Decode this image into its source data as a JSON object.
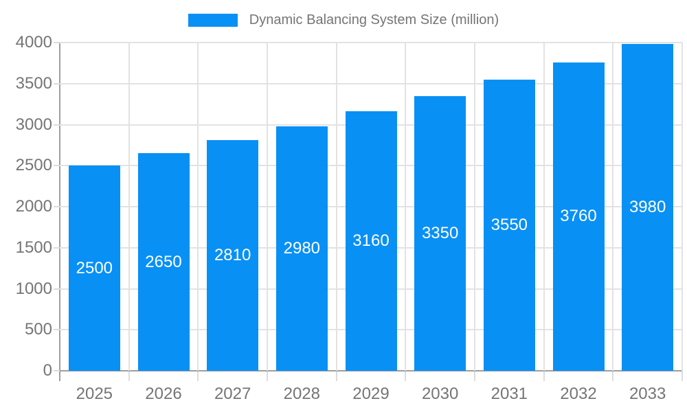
{
  "chart_data": {
    "type": "bar",
    "title": "Dynamic Balancing System Size (million)",
    "legend": {
      "position": "top",
      "label": "Dynamic Balancing System Size (million)"
    },
    "categories": [
      "2025",
      "2026",
      "2027",
      "2028",
      "2029",
      "2030",
      "2031",
      "2032",
      "2033"
    ],
    "values": [
      2500,
      2650,
      2810,
      2980,
      3160,
      3350,
      3550,
      3760,
      3980
    ],
    "xlabel": "",
    "ylabel": "",
    "ylim": [
      0,
      4000
    ],
    "yticks": [
      0,
      500,
      1000,
      1500,
      2000,
      2500,
      3000,
      3500,
      4000
    ],
    "grid": true,
    "data_labels": "inside-middle"
  },
  "colors": {
    "bar": "#0990f5",
    "axis": "#9e9e9e",
    "grid": "#e2e2e2",
    "tick": "#dcdcdc",
    "tick_label": "#757575",
    "value_label": "#ffffff",
    "background": "#ffffff"
  }
}
